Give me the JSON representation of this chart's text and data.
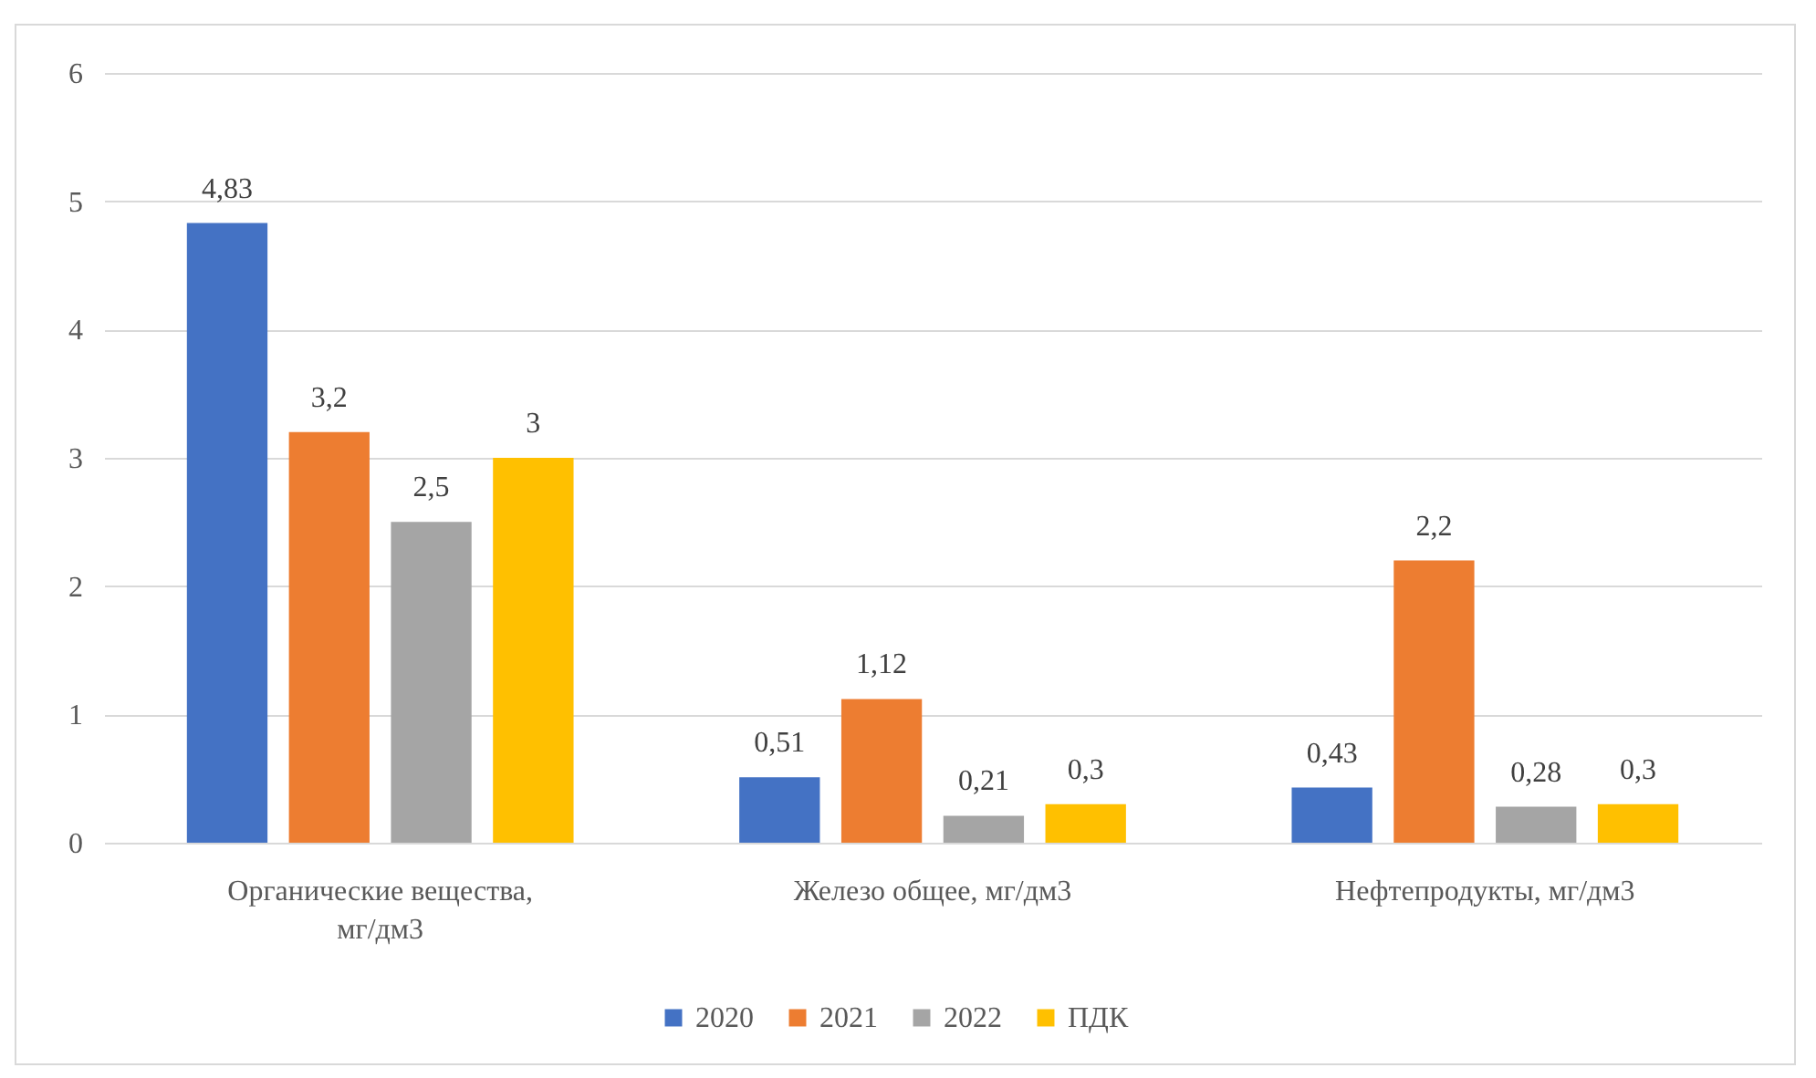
{
  "chart_data": {
    "type": "bar",
    "categories": [
      "Органические вещества, мг/дм3",
      "Железо общее, мг/дм3",
      "Нефтепродукты, мг/дм3"
    ],
    "series": [
      {
        "name": "2020",
        "color": "#4472c4",
        "values": [
          4.83,
          0.51,
          0.43
        ],
        "value_labels": [
          "4,83",
          "0,51",
          "0,43"
        ]
      },
      {
        "name": "2021",
        "color": "#ed7d31",
        "values": [
          3.2,
          1.12,
          2.2
        ],
        "value_labels": [
          "3,2",
          "1,12",
          "2,2"
        ]
      },
      {
        "name": "2022",
        "color": "#a5a5a5",
        "values": [
          2.5,
          0.21,
          0.28
        ],
        "value_labels": [
          "2,5",
          "0,21",
          "0,28"
        ]
      },
      {
        "name": "ПДК",
        "color": "#ffc000",
        "values": [
          3,
          0.3,
          0.3
        ],
        "value_labels": [
          "3",
          "0,3",
          "0,3"
        ]
      }
    ],
    "ylim": [
      0,
      6
    ],
    "yticks": [
      0,
      1,
      2,
      3,
      4,
      5,
      6
    ],
    "grid": "y",
    "legend": "bottom"
  }
}
